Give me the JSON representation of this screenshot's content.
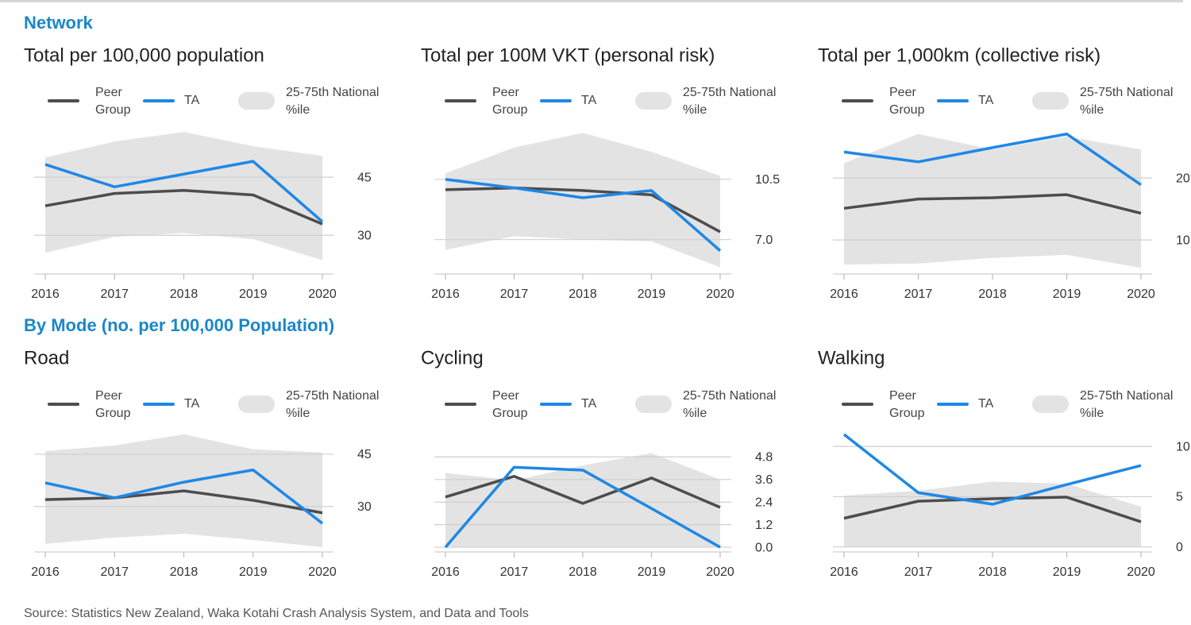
{
  "headings": [
    "Network",
    "By Mode (no. per 100,000 Population)"
  ],
  "source": "Source: Statistics New Zealand, Waka Kotahi Crash Analysis System, and Data and Tools",
  "chart_data": [
    {
      "type": "line",
      "title": "Total per 100,000 population",
      "categories": [
        "2016",
        "2017",
        "2018",
        "2019",
        "2020"
      ],
      "ylim": [
        20,
        60
      ],
      "yticks": [
        30,
        45
      ],
      "series": [
        {
          "name": "25-75th National %ile",
          "type": "band",
          "color": "#e3e3e3",
          "low": [
            25.5,
            29.6,
            30.6,
            29.0,
            23.6
          ],
          "high": [
            50.1,
            54.2,
            56.7,
            53.0,
            50.5
          ]
        },
        {
          "name": "Peer Group",
          "color": "#4d4d4d",
          "values": [
            37.6,
            40.8,
            41.6,
            40.4,
            32.9
          ]
        },
        {
          "name": "TA",
          "color": "#1e88e5",
          "values": [
            48.3,
            42.5,
            45.8,
            49.1,
            33.5
          ]
        }
      ]
    },
    {
      "type": "line",
      "title": "Total per 100M VKT (personal risk)",
      "categories": [
        "2016",
        "2017",
        "2018",
        "2019",
        "2020"
      ],
      "ylim": [
        5,
        14
      ],
      "yticks": [
        {
          "value": 7,
          "label": "7.0"
        },
        10.5
      ],
      "series": [
        {
          "name": "25-75th National %ile",
          "type": "band",
          "color": "#e3e3e3",
          "low": [
            6.4,
            7.2,
            7.0,
            6.9,
            5.4
          ],
          "high": [
            10.85,
            12.35,
            13.2,
            12.1,
            10.7
          ]
        },
        {
          "name": "Peer Group",
          "color": "#4d4d4d",
          "values": [
            9.9,
            10.0,
            9.85,
            9.6,
            7.45
          ]
        },
        {
          "name": "TA",
          "color": "#1e88e5",
          "values": [
            10.5,
            10.0,
            9.43,
            9.85,
            6.35
          ]
        }
      ]
    },
    {
      "type": "line",
      "title": "Total per 1,000km (collective risk)",
      "categories": [
        "2016",
        "2017",
        "2018",
        "2019",
        "2020"
      ],
      "ylim": [
        4.5,
        29.5
      ],
      "yticks": [
        10,
        20
      ],
      "series": [
        {
          "name": "25-75th National %ile",
          "type": "band",
          "color": "#e3e3e3",
          "low": [
            6.0,
            6.2,
            7.1,
            7.6,
            5.5
          ],
          "high": [
            22.4,
            27.1,
            24.6,
            26.7,
            24.6
          ]
        },
        {
          "name": "Peer Group",
          "color": "#4d4d4d",
          "values": [
            15.1,
            16.6,
            16.8,
            17.3,
            14.3
          ]
        },
        {
          "name": "TA",
          "color": "#1e88e5",
          "values": [
            24.2,
            22.6,
            24.9,
            27.1,
            18.9
          ]
        }
      ]
    },
    {
      "type": "line",
      "title": "Road",
      "categories": [
        "2016",
        "2017",
        "2018",
        "2019",
        "2020"
      ],
      "ylim": [
        17,
        55
      ],
      "yticks": [
        30,
        45
      ],
      "series": [
        {
          "name": "25-75th National %ile",
          "type": "band",
          "color": "#e3e3e3",
          "low": [
            19.3,
            21.1,
            22.2,
            20.4,
            18.4
          ],
          "high": [
            45.9,
            47.5,
            50.7,
            46.4,
            45.5
          ]
        },
        {
          "name": "Peer Group",
          "color": "#4d4d4d",
          "values": [
            32.0,
            32.5,
            34.5,
            31.8,
            28.2
          ]
        },
        {
          "name": "TA",
          "color": "#1e88e5",
          "values": [
            36.8,
            32.5,
            37.0,
            40.5,
            25.2
          ]
        }
      ]
    },
    {
      "type": "line",
      "title": "Cycling",
      "categories": [
        "2016",
        "2017",
        "2018",
        "2019",
        "2020"
      ],
      "ylim": [
        -0.25,
        6.8
      ],
      "yticks": [
        {
          "value": 0,
          "label": "0.0"
        },
        1.2,
        2.4,
        3.6,
        4.8
      ],
      "series": [
        {
          "name": "25-75th National %ile",
          "type": "band",
          "color": "#e3e3e3",
          "low": [
            0,
            0,
            0,
            0,
            0
          ],
          "high": [
            3.95,
            3.55,
            4.35,
            5.0,
            3.6
          ]
        },
        {
          "name": "Peer Group",
          "color": "#4d4d4d",
          "values": [
            2.67,
            3.77,
            2.33,
            3.68,
            2.12
          ]
        },
        {
          "name": "TA",
          "color": "#1e88e5",
          "values": [
            0,
            4.25,
            4.1,
            2.06,
            0
          ]
        }
      ]
    },
    {
      "type": "line",
      "title": "Walking",
      "categories": [
        "2016",
        "2017",
        "2018",
        "2019",
        "2020"
      ],
      "ylim": [
        -0.5,
        12.7
      ],
      "yticks": [
        0,
        5,
        10
      ],
      "series": [
        {
          "name": "25-75th National %ile",
          "type": "band",
          "color": "#e3e3e3",
          "low": [
            0,
            0,
            0,
            0,
            0
          ],
          "high": [
            5.1,
            5.6,
            6.5,
            6.3,
            4.0
          ]
        },
        {
          "name": "Peer Group",
          "color": "#4d4d4d",
          "values": [
            2.85,
            4.55,
            4.8,
            4.95,
            2.5
          ]
        },
        {
          "name": "TA",
          "color": "#1e88e5",
          "values": [
            11.2,
            5.4,
            4.25,
            6.2,
            8.1
          ]
        }
      ]
    }
  ]
}
